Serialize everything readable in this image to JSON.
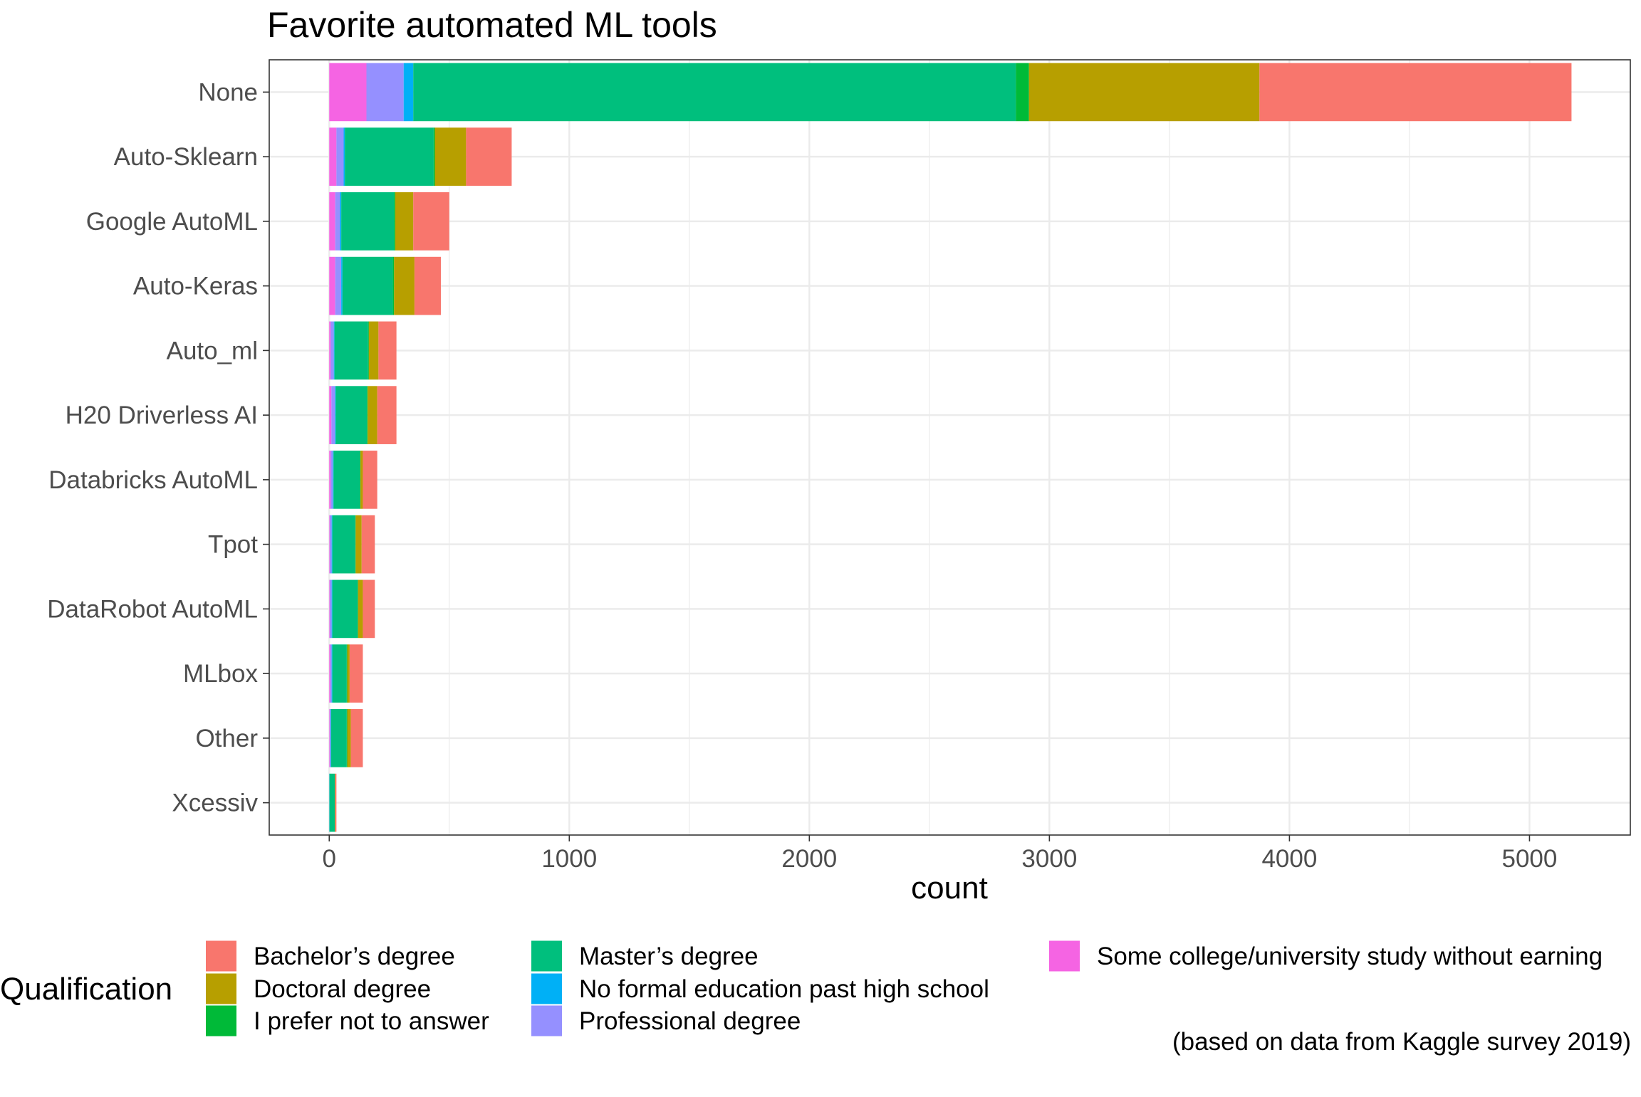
{
  "chart_data": {
    "type": "bar",
    "orientation": "horizontal",
    "stacked": true,
    "title": "Favorite automated ML tools",
    "xlabel": "count",
    "ylabel": "",
    "caption": "(based on data from Kaggle survey 2019)",
    "legend_title": "Qualification",
    "legend_position": "bottom",
    "grid": true,
    "xlim": [
      -250,
      5420
    ],
    "x_ticks": [
      0,
      1000,
      2000,
      3000,
      4000,
      5000
    ],
    "x_tick_labels": [
      "0",
      "1000",
      "2000",
      "3000",
      "4000",
      "5000"
    ],
    "categories": [
      "None",
      "Auto-Sklearn",
      "Google AutoML",
      "Auto-Keras",
      "Auto_ml",
      "H20 Driverless AI ",
      "Databricks AutoML",
      "Tpot",
      "DataRobot AutoML",
      "MLbox",
      "Other",
      "Xcessiv"
    ],
    "stack_order": [
      "Some college/university study without earning a bachelor’s degree",
      "Professional degree",
      "No formal education past high school",
      "Master’s degree",
      "I prefer not to answer",
      "Doctoral degree",
      "Bachelor’s degree"
    ],
    "series": [
      {
        "name": "Bachelor’s degree",
        "color": "#F8766D",
        "values": [
          1300,
          190,
          150,
          110,
          75,
          80,
          60,
          55,
          50,
          55,
          50,
          5
        ]
      },
      {
        "name": "Doctoral degree",
        "color": "#B79F00",
        "values": [
          960,
          130,
          75,
          85,
          40,
          40,
          10,
          25,
          20,
          10,
          15,
          2
        ]
      },
      {
        "name": "I prefer not to answer",
        "color": "#00BA38",
        "values": [
          55,
          5,
          5,
          5,
          3,
          3,
          2,
          2,
          2,
          2,
          2,
          0
        ]
      },
      {
        "name": "Master’s degree",
        "color": "#00BF7D",
        "values": [
          2510,
          370,
          220,
          210,
          140,
          130,
          110,
          95,
          105,
          60,
          65,
          22
        ]
      },
      {
        "name": "No formal education past high school",
        "color": "#00B0F6",
        "values": [
          40,
          5,
          5,
          5,
          3,
          3,
          3,
          3,
          3,
          3,
          2,
          1
        ]
      },
      {
        "name": "Professional degree",
        "color": "#9590FF",
        "values": [
          155,
          30,
          20,
          25,
          13,
          15,
          9,
          8,
          8,
          6,
          4,
          0
        ]
      },
      {
        "name": "Some college/university study without earning a bachelor’s degree",
        "color": "#F564E3",
        "values": [
          155,
          30,
          25,
          25,
          6,
          9,
          6,
          2,
          2,
          4,
          2,
          0
        ]
      }
    ],
    "legend_entries": [
      {
        "label": "Bachelor’s degree",
        "color": "#F8766D"
      },
      {
        "label": "Doctoral degree",
        "color": "#B79F00"
      },
      {
        "label": "I prefer not to answer",
        "color": "#00BA38"
      },
      {
        "label": "Master’s degree",
        "color": "#00BF7D"
      },
      {
        "label": "No formal education past high school",
        "color": "#00B0F6"
      },
      {
        "label": "Professional degree",
        "color": "#9590FF"
      },
      {
        "label": "Some college/university study without earning",
        "color": "#F564E3"
      }
    ]
  }
}
